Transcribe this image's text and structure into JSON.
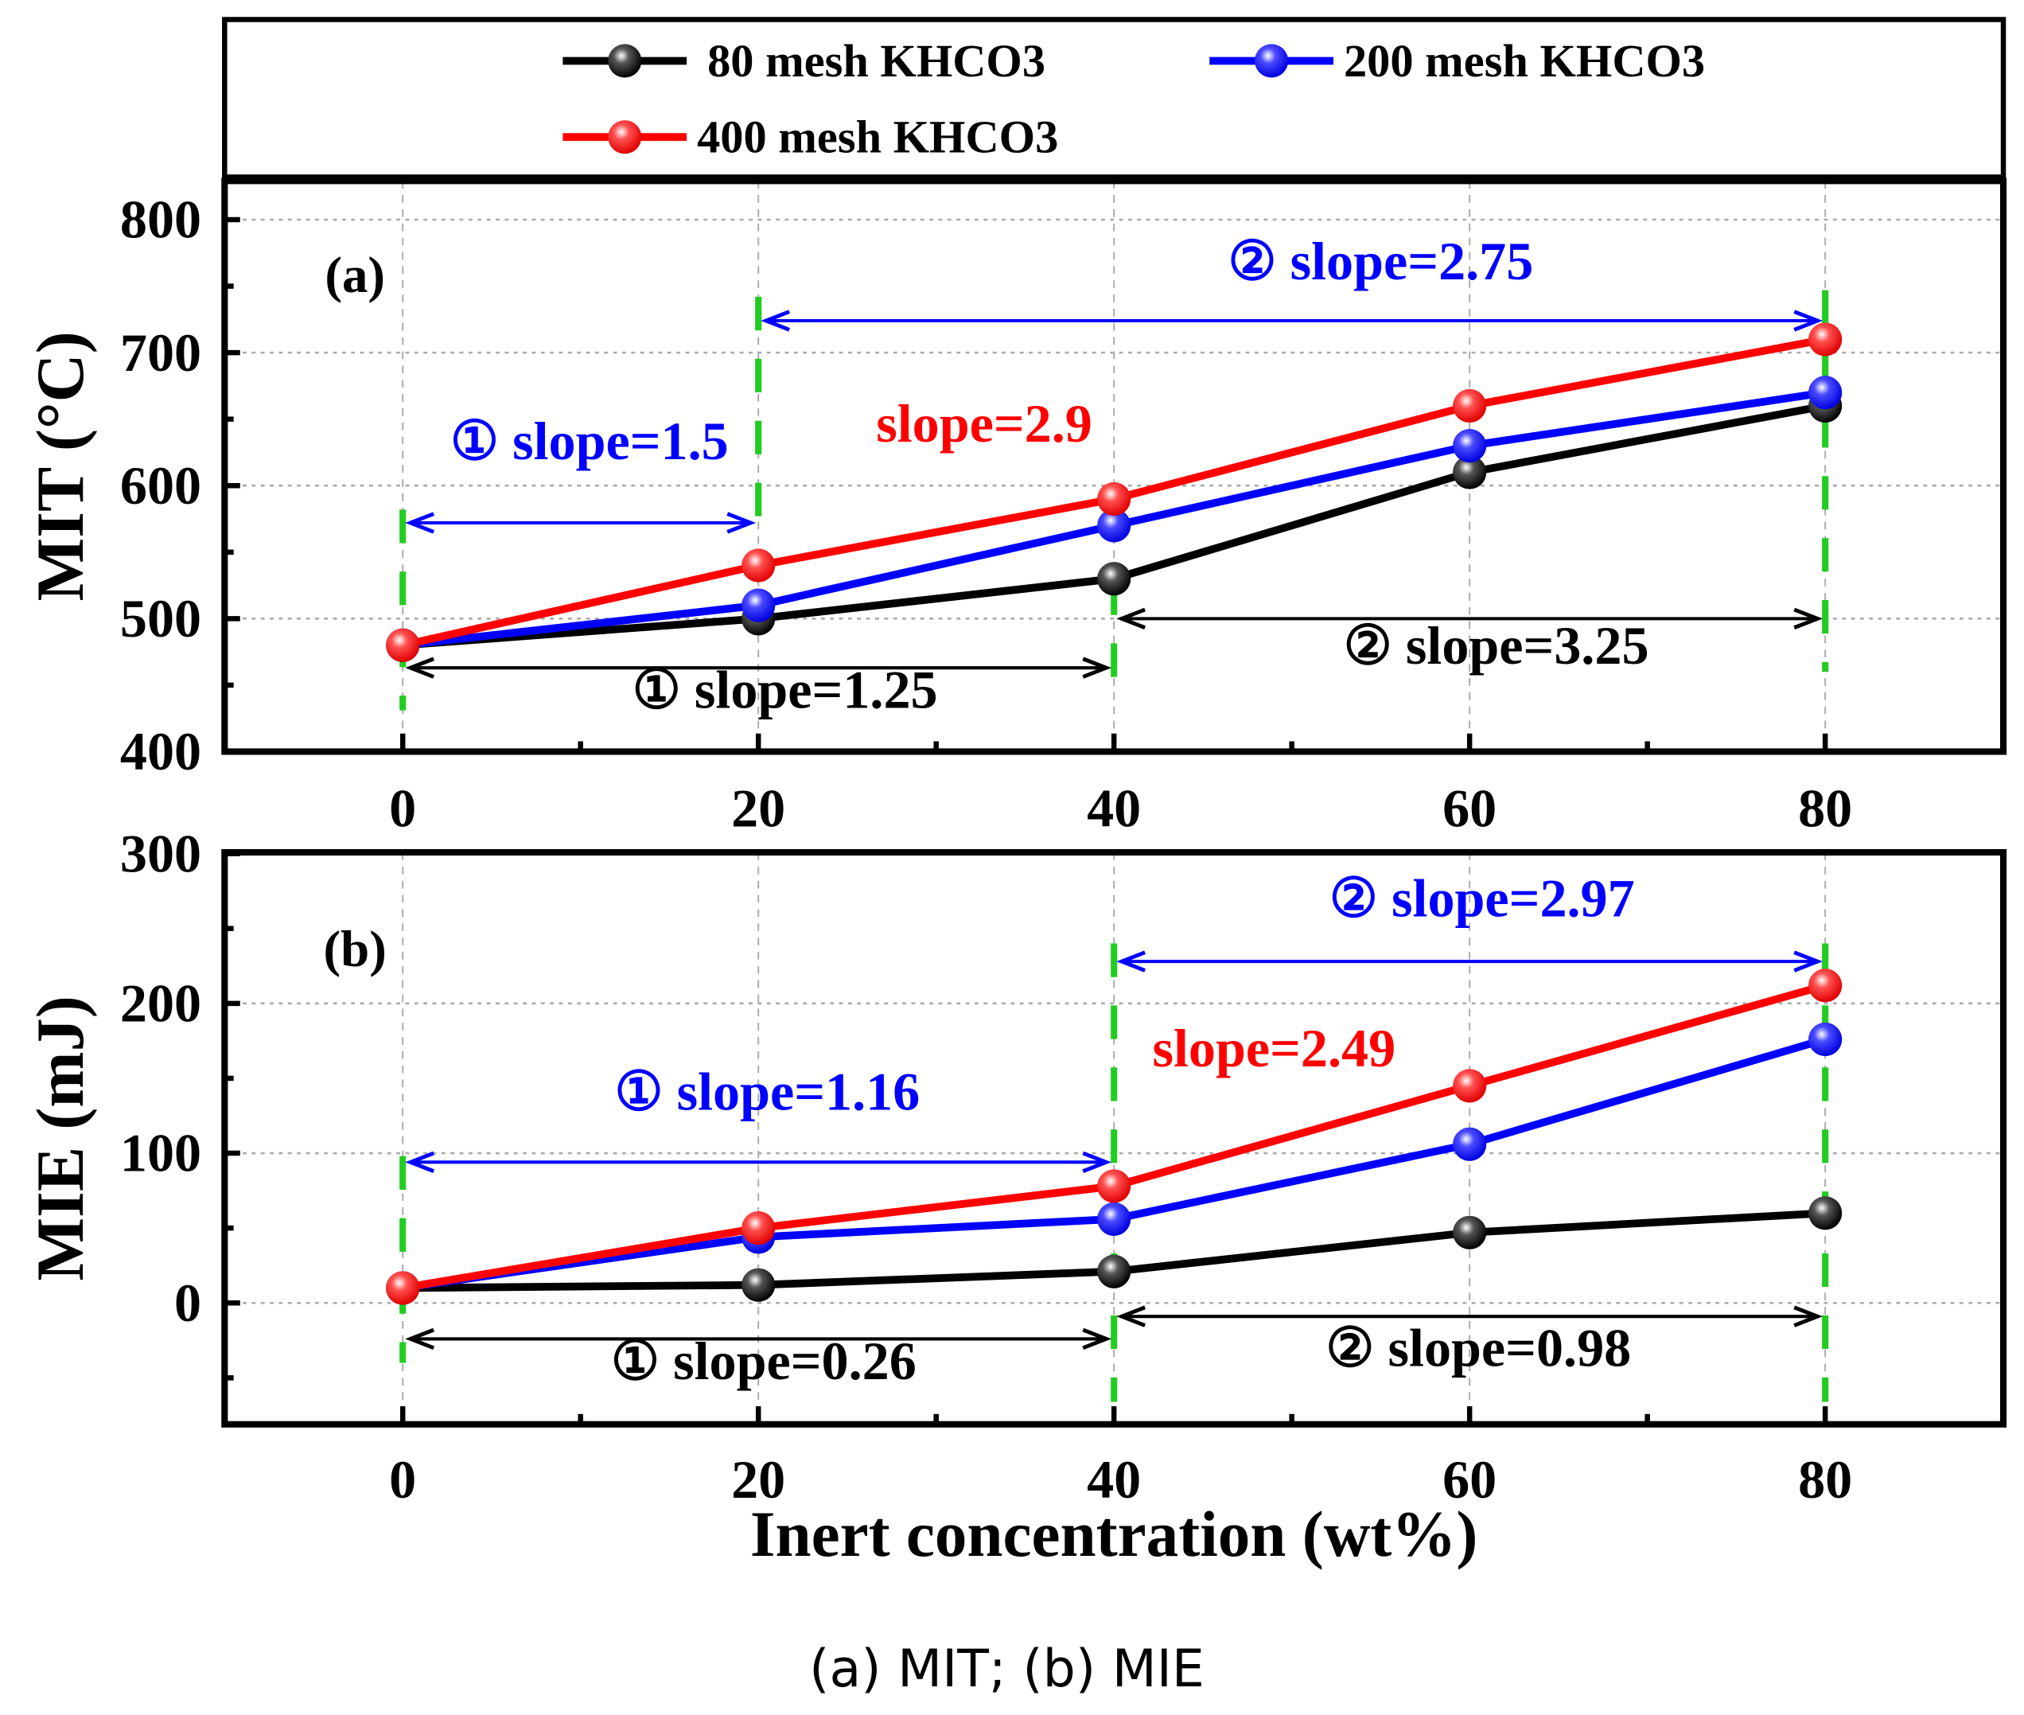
{
  "legend": [
    {
      "name": "80  mesh KHCO3",
      "color": "#000000"
    },
    {
      "name": "200 mesh KHCO3",
      "color": "#0000ff"
    },
    {
      "name": "400 mesh KHCO3",
      "color": "#ff0000"
    }
  ],
  "caption": "(a) MIT; (b) MIE",
  "xlabel": "Inert concentration (wt%)",
  "colors": {
    "guide": "#22cc22",
    "grid": "#aaaaaa"
  },
  "chart_data": [
    {
      "type": "line",
      "panel_label": "(a)",
      "ylabel": "MIT (°C)",
      "x": [
        0,
        20,
        40,
        60,
        80
      ],
      "xticks": [
        "0",
        "20",
        "40",
        "60",
        "80"
      ],
      "xlim": [
        -10,
        90
      ],
      "ylim": [
        400,
        810
      ],
      "yticks": [
        "400",
        "500",
        "600",
        "700",
        "800"
      ],
      "ytick_values": [
        400,
        500,
        600,
        700,
        800
      ],
      "grid": true,
      "series": [
        {
          "name": "80  mesh KHCO3",
          "color": "#000000",
          "values": [
            480,
            500,
            530,
            610,
            660
          ]
        },
        {
          "name": "200 mesh KHCO3",
          "color": "#0000ff",
          "values": [
            480,
            510,
            570,
            630,
            670
          ]
        },
        {
          "name": "400 mesh KHCO3",
          "color": "#ff0000",
          "values": [
            480,
            540,
            590,
            660,
            710
          ]
        }
      ],
      "annotations": [
        {
          "text": "① slope=1.5",
          "color": "#0000ff",
          "x_from": 0,
          "x_to": 20,
          "arrow_y": 572,
          "label_x": 10.5,
          "label_y": 620
        },
        {
          "text": "② slope=2.75",
          "color": "#0000ff",
          "x_from": 20,
          "x_to": 80,
          "arrow_y": 724,
          "label_x": 55,
          "label_y": 755
        },
        {
          "text": "slope=2.9",
          "color": "#ff0000",
          "label_x": 32.7,
          "label_y": 633
        },
        {
          "text": "① slope=1.25",
          "color": "#000000",
          "x_from": 0,
          "x_to": 40,
          "arrow_y": 463,
          "label_x": 21.5,
          "label_y": 433
        },
        {
          "text": "② slope=3.25",
          "color": "#000000",
          "x_from": 40,
          "x_to": 80,
          "arrow_y": 500,
          "label_x": 61.5,
          "label_y": 466
        }
      ],
      "guides": [
        {
          "x": 0,
          "y_from": 431,
          "y_to": 582
        },
        {
          "x": 20,
          "y_from": 577,
          "y_to": 742
        },
        {
          "x": 40,
          "y_from": 436,
          "y_to": 528
        },
        {
          "x": 80,
          "y_from": 460,
          "y_to": 747
        }
      ]
    },
    {
      "type": "line",
      "panel_label": "(b)",
      "ylabel": "MIE (mJ)",
      "x": [
        0,
        20,
        40,
        60,
        80
      ],
      "xticks": [
        "0",
        "20",
        "40",
        "60",
        "80"
      ],
      "xlim": [
        -10,
        90
      ],
      "ylim": [
        -81,
        300
      ],
      "yticks": [
        "0",
        "100",
        "200",
        "300"
      ],
      "ytick_values": [
        0,
        100,
        200,
        300
      ],
      "grid": true,
      "series": [
        {
          "name": "80  mesh KHCO3",
          "color": "#000000",
          "values": [
            10,
            12,
            21,
            47,
            60
          ]
        },
        {
          "name": "200 mesh KHCO3",
          "color": "#0000ff",
          "values": [
            10,
            44,
            56,
            106,
            176
          ]
        },
        {
          "name": "400 mesh KHCO3",
          "color": "#ff0000",
          "values": [
            10,
            50,
            78,
            145,
            212
          ]
        }
      ],
      "annotations": [
        {
          "text": "① slope=1.16",
          "color": "#0000ff",
          "x_from": 0,
          "x_to": 40,
          "arrow_y": 94,
          "label_x": 20.5,
          "label_y": 129
        },
        {
          "text": "② slope=2.97",
          "color": "#0000ff",
          "x_from": 40,
          "x_to": 80,
          "arrow_y": 228,
          "label_x": 60.7,
          "label_y": 258
        },
        {
          "text": "slope=2.49",
          "color": "#ff0000",
          "label_x": 49,
          "label_y": 158
        },
        {
          "text": "① slope=0.26",
          "color": "#000000",
          "x_from": 0,
          "x_to": 40,
          "arrow_y": -24,
          "label_x": 20.3,
          "label_y": -51
        },
        {
          "text": "② slope=0.98",
          "color": "#000000",
          "x_from": 40,
          "x_to": 80,
          "arrow_y": -9,
          "label_x": 60.5,
          "label_y": -42
        }
      ],
      "guides": [
        {
          "x": 0,
          "y_from": -40,
          "y_to": 98
        },
        {
          "x": 40,
          "y_from": -66,
          "y_to": 240
        },
        {
          "x": 80,
          "y_from": -66,
          "y_to": 240
        }
      ]
    }
  ]
}
